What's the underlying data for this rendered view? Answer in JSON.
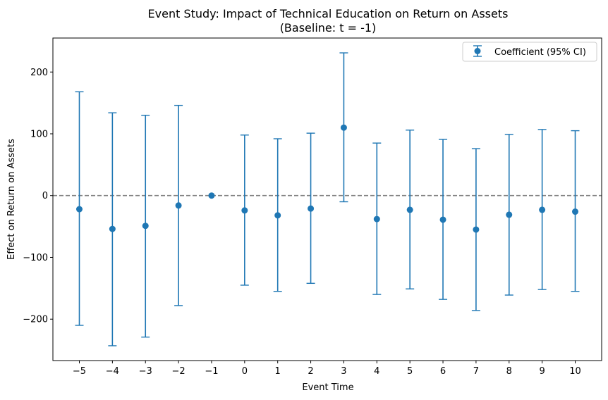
{
  "chart_data": {
    "type": "scatter",
    "title_line1": "Event Study: Impact of Technical Education on Return on Assets",
    "title_line2": "(Baseline: t = -1)",
    "xlabel": "Event Time",
    "ylabel": "Effect on Return on Assets",
    "legend_label": "Coefficient (95% CI)",
    "legend_position": "top-right",
    "grid": false,
    "reference_line_y": 0,
    "xlim": [
      -5.8,
      10.8
    ],
    "ylim": [
      -267,
      255
    ],
    "xticks": [
      -5,
      -4,
      -3,
      -2,
      -1,
      0,
      1,
      2,
      3,
      4,
      5,
      6,
      7,
      8,
      9,
      10
    ],
    "xtick_labels": [
      "−5",
      "−4",
      "−3",
      "−2",
      "−1",
      "0",
      "1",
      "2",
      "3",
      "4",
      "5",
      "6",
      "7",
      "8",
      "9",
      "10"
    ],
    "yticks": [
      -200,
      -100,
      0,
      100,
      200
    ],
    "ytick_labels": [
      "−200",
      "−100",
      "0",
      "100",
      "200"
    ],
    "color": "#1f77b4",
    "series": [
      {
        "x": [
          -5,
          -4,
          -3,
          -2,
          -1,
          0,
          1,
          2,
          3,
          4,
          5,
          6,
          7,
          8,
          9,
          10
        ],
        "y": [
          -22,
          -54,
          -49,
          -16,
          0,
          -24,
          -32,
          -21,
          110,
          -38,
          -23,
          -39,
          -55,
          -31,
          -23,
          -26
        ],
        "lower": [
          -210,
          -243,
          -229,
          -178,
          0,
          -145,
          -155,
          -142,
          -10,
          -160,
          -151,
          -168,
          -186,
          -161,
          -152,
          -155
        ],
        "upper": [
          168,
          134,
          130,
          146,
          0,
          98,
          92,
          101,
          231,
          85,
          106,
          91,
          76,
          99,
          107,
          105
        ]
      }
    ]
  }
}
